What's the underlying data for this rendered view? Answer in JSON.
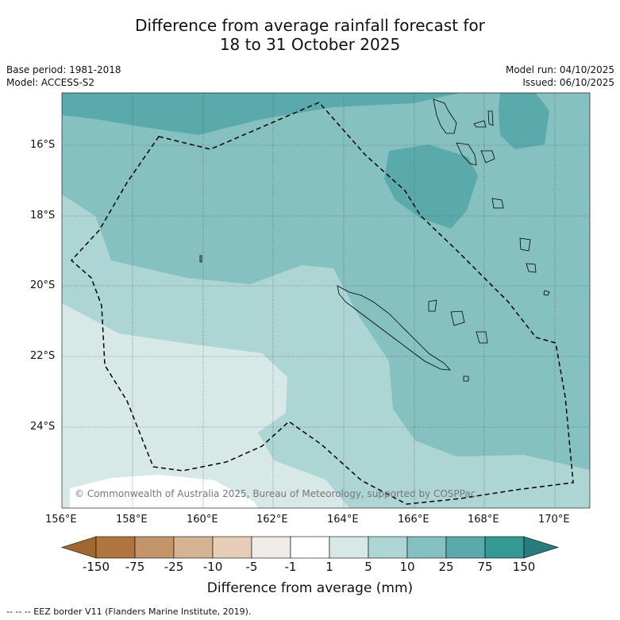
{
  "title": {
    "line1": "Difference from average rainfall forecast for",
    "line2": "18 to 31 October 2025"
  },
  "meta": {
    "base_period": "Base period: 1981-2018",
    "model": "Model: ACCESS-S2",
    "model_run": "Model run: 04/10/2025",
    "issued": "Issued: 06/10/2025"
  },
  "map": {
    "copyright": "© Commonwealth of Australia 2025, Bureau of Meteorology, supported by COSPPac",
    "lat_labels": [
      "16°S",
      "18°S",
      "20°S",
      "22°S",
      "24°S"
    ],
    "lon_labels": [
      "156°E",
      "158°E",
      "160°E",
      "162°E",
      "164°E",
      "166°E",
      "168°E",
      "170°E"
    ]
  },
  "colorbar": {
    "title": "Difference from average (mm)",
    "labels": [
      "-150",
      "-75",
      "-25",
      "-10",
      "-5",
      "-1",
      "1",
      "5",
      "10",
      "25",
      "75",
      "150"
    ],
    "colors": [
      "#a0682f",
      "#b0753e",
      "#c4956a",
      "#d5b292",
      "#e6cdb8",
      "#efebe7",
      "#ffffff",
      "#d7e9e7",
      "#add5d4",
      "#85c1c0",
      "#5aaaab",
      "#339995",
      "#267d7a"
    ]
  },
  "footnote": "--  --  -- EEZ border V11 (Flanders Marine Institute, 2019)."
}
